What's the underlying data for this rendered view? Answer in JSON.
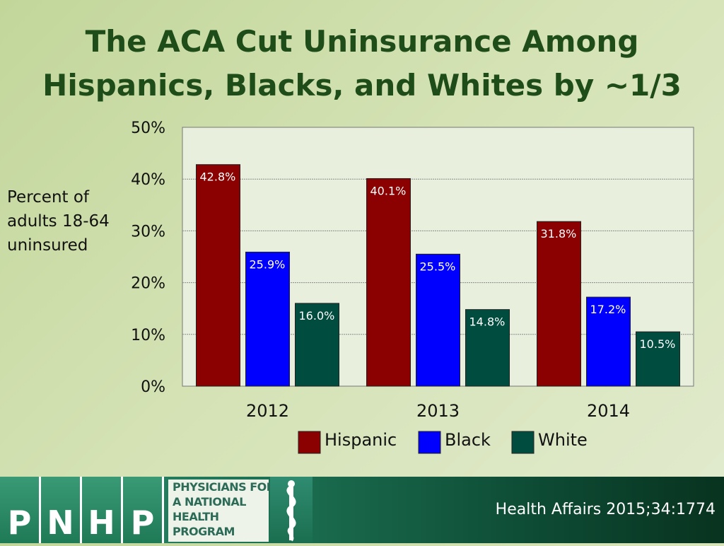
{
  "title": {
    "line1": "The ACA Cut Uninsurance Among",
    "line2": "Hispanics, Blacks, and Whites by ~1/3"
  },
  "y_axis_label": {
    "line1": "Percent of",
    "line2": "adults 18-64",
    "line3": "uninsured"
  },
  "chart_data": {
    "type": "bar",
    "categories": [
      "2012",
      "2013",
      "2014"
    ],
    "series": [
      {
        "name": "Hispanic",
        "values": [
          42.8,
          40.1,
          31.8
        ],
        "labels": [
          "42.8%",
          "40.1%",
          "31.8%"
        ],
        "color": "#8b0000"
      },
      {
        "name": "Black",
        "values": [
          25.9,
          25.5,
          17.2
        ],
        "labels": [
          "25.9%",
          "25.5%",
          "17.2%"
        ],
        "color": "#0000ff"
      },
      {
        "name": "White",
        "values": [
          16.0,
          14.8,
          10.5
        ],
        "labels": [
          "16.0%",
          "14.8%",
          "10.5%"
        ],
        "color": "#004d40"
      }
    ],
    "ylim": [
      0,
      50
    ],
    "yticks": [
      0,
      10,
      20,
      30,
      40,
      50
    ],
    "ytick_labels": [
      "0%",
      "10%",
      "20%",
      "30%",
      "40%",
      "50%"
    ],
    "grid": true,
    "legend": "bottom",
    "plot_background": "#e8efdc"
  },
  "footer": {
    "logo_letters": [
      "P",
      "N",
      "H",
      "P"
    ],
    "logo_lines": [
      "PHYSICIANS FOR",
      "A NATIONAL",
      "HEALTH",
      "PROGRAM"
    ],
    "source": "Health Affairs 2015;34:1774"
  }
}
